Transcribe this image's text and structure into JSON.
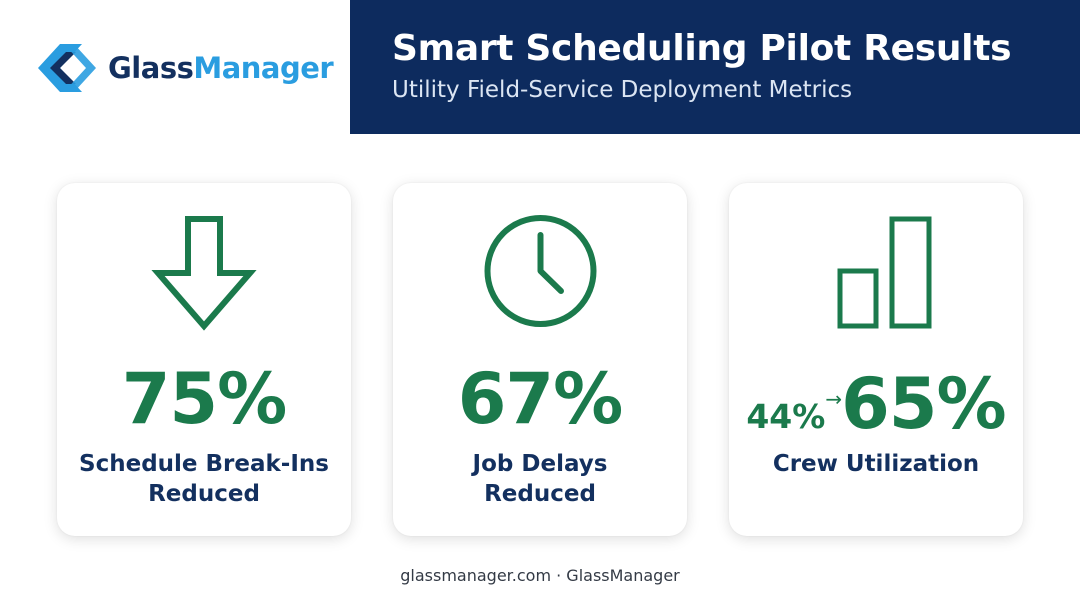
{
  "brand": {
    "name_part1": "Glass",
    "name_part2": "Manager",
    "colors": {
      "navy": "#0d2b5e",
      "blue": "#2a9de0",
      "green": "#1b7a4c"
    }
  },
  "header": {
    "title": "Smart Scheduling Pilot Results",
    "subtitle": "Utility Field-Service Deployment Metrics"
  },
  "cards": [
    {
      "icon": "arrow-down-icon",
      "value": "75%",
      "label_line1": "Schedule Break-Ins",
      "label_line2": "Reduced"
    },
    {
      "icon": "clock-icon",
      "value": "67%",
      "label_line1": "Job Delays",
      "label_line2": "Reduced"
    },
    {
      "icon": "bar-chart-icon",
      "value_before": "44%",
      "arrow": "→",
      "value": "65%",
      "label_line1": "Crew Utilization",
      "label_line2": ""
    }
  ],
  "footer": {
    "text": "glassmanager.com · GlassManager"
  }
}
